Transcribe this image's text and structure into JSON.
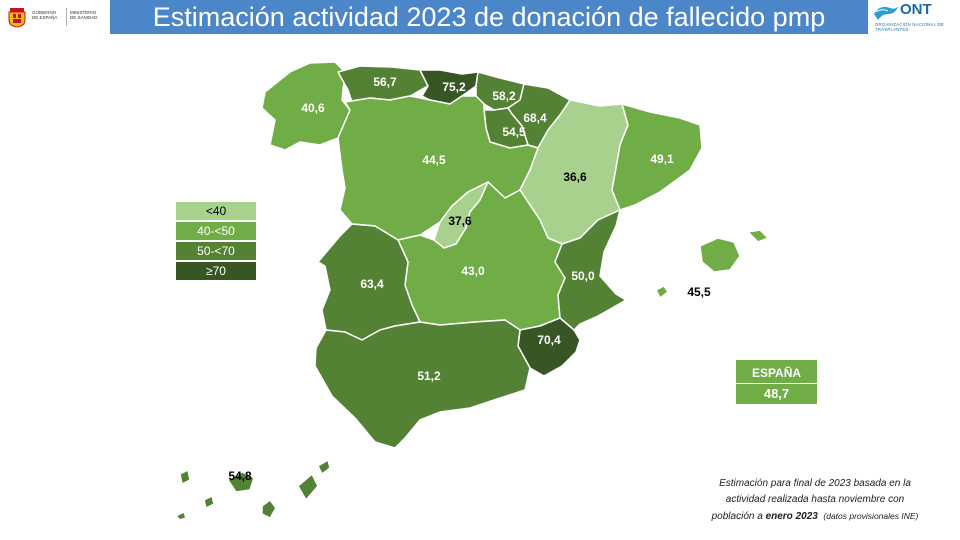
{
  "header": {
    "title": "Estimación actividad 2023 de donación de fallecido pmp",
    "gov_logo_line1": "GOBIERNO\nDE ESPAÑA",
    "gov_logo_line2": "MINISTERIO\nDE SANIDAD",
    "ont_logo_name": "ONT",
    "ont_logo_subtitle": "ORGANIZACIÓN NACIONAL DE TRASPLANTES"
  },
  "colors": {
    "title_bar": "#4a86c8",
    "below_40": "#a9d18e",
    "40_to_50": "#70ad47",
    "50_to_70": "#548235",
    "70_plus": "#375623"
  },
  "legend": [
    {
      "label": "<40",
      "color": "#a9d18e",
      "text_color": "#000000"
    },
    {
      "label": "40-<50",
      "color": "#70ad47",
      "text_color": "#ffffff"
    },
    {
      "label": "50-<70",
      "color": "#548235",
      "text_color": "#ffffff"
    },
    {
      "label": "≥70",
      "color": "#375623",
      "text_color": "#ffffff"
    }
  ],
  "regions": [
    {
      "name": "Galicia",
      "value": "40,6",
      "category": "40_to_50"
    },
    {
      "name": "Asturias",
      "value": "56,7",
      "category": "50_to_70"
    },
    {
      "name": "Cantabria",
      "value": "75,2",
      "category": "70_plus"
    },
    {
      "name": "País Vasco",
      "value": "58,2",
      "category": "50_to_70"
    },
    {
      "name": "Navarra",
      "value": "68,4",
      "category": "50_to_70"
    },
    {
      "name": "La Rioja",
      "value": "54,5",
      "category": "50_to_70"
    },
    {
      "name": "Castilla y León",
      "value": "44,5",
      "category": "40_to_50"
    },
    {
      "name": "Aragón",
      "value": "36,6",
      "category": "below_40"
    },
    {
      "name": "Cataluña",
      "value": "49,1",
      "category": "40_to_50"
    },
    {
      "name": "Madrid",
      "value": "37,6",
      "category": "below_40"
    },
    {
      "name": "Castilla-La Mancha",
      "value": "43,0",
      "category": "40_to_50"
    },
    {
      "name": "C. Valenciana",
      "value": "50,0",
      "category": "50_to_70"
    },
    {
      "name": "Extremadura",
      "value": "63,4",
      "category": "50_to_70"
    },
    {
      "name": "Murcia",
      "value": "70,4",
      "category": "70_plus"
    },
    {
      "name": "Andalucía",
      "value": "51,2",
      "category": "50_to_70"
    },
    {
      "name": "Baleares",
      "value": "45,5",
      "category": "40_to_50"
    },
    {
      "name": "Canarias",
      "value": "54,8",
      "category": "50_to_70"
    }
  ],
  "spain_total": {
    "label": "ESPAÑA",
    "value": "48,7"
  },
  "footnote": {
    "line1": "Estimación  para final de 2023 basada en la",
    "line2": "actividad realizada hasta noviembre con",
    "line3_prefix": "población a ",
    "line3_bold": "enero 2023",
    "line3_small": "(datos provisionales INE)"
  }
}
